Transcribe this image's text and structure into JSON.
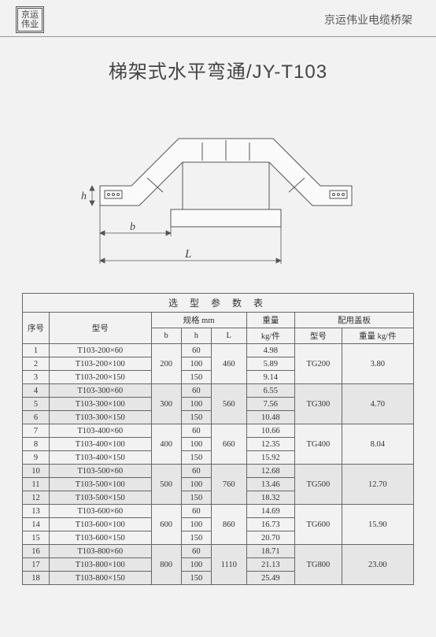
{
  "header": {
    "logo_line1": "京运",
    "logo_line2": "伟业",
    "right_text": "京运伟业电缆桥架"
  },
  "product_title": "梯架式水平弯通/JY-T103",
  "diagram": {
    "label_h": "h",
    "label_b": "b",
    "label_L": "L"
  },
  "table": {
    "title": "选 型 参 数 表",
    "headers": {
      "seq": "序号",
      "model": "型号",
      "spec": "规格 mm",
      "b": "b",
      "h": "h",
      "L": "L",
      "weight": "重量",
      "weight_unit": "kg/件",
      "cover": "配用盖板",
      "cover_model": "型号",
      "cover_weight": "重量 kg/件"
    },
    "groups": [
      {
        "shade": false,
        "b": "200",
        "L": "460",
        "cover_model": "TG200",
        "cover_weight": "3.80",
        "rows": [
          {
            "seq": "1",
            "model": "T103-200×60",
            "h": "60",
            "wt": "4.98"
          },
          {
            "seq": "2",
            "model": "T103-200×100",
            "h": "100",
            "wt": "5.89"
          },
          {
            "seq": "3",
            "model": "T103-200×150",
            "h": "150",
            "wt": "9.14"
          }
        ]
      },
      {
        "shade": true,
        "b": "300",
        "L": "560",
        "cover_model": "TG300",
        "cover_weight": "4.70",
        "rows": [
          {
            "seq": "4",
            "model": "T103-300×60",
            "h": "60",
            "wt": "6.55"
          },
          {
            "seq": "5",
            "model": "T103-300×100",
            "h": "100",
            "wt": "7.56"
          },
          {
            "seq": "6",
            "model": "T103-300×150",
            "h": "150",
            "wt": "10.48"
          }
        ]
      },
      {
        "shade": false,
        "b": "400",
        "L": "660",
        "cover_model": "TG400",
        "cover_weight": "8.04",
        "rows": [
          {
            "seq": "7",
            "model": "T103-400×60",
            "h": "60",
            "wt": "10.66"
          },
          {
            "seq": "8",
            "model": "T103-400×100",
            "h": "100",
            "wt": "12.35"
          },
          {
            "seq": "9",
            "model": "T103-400×150",
            "h": "150",
            "wt": "15.92"
          }
        ]
      },
      {
        "shade": true,
        "b": "500",
        "L": "760",
        "cover_model": "TG500",
        "cover_weight": "12.70",
        "rows": [
          {
            "seq": "10",
            "model": "T103-500×60",
            "h": "60",
            "wt": "12.68"
          },
          {
            "seq": "11",
            "model": "T103-500×100",
            "h": "100",
            "wt": "13.46"
          },
          {
            "seq": "12",
            "model": "T103-500×150",
            "h": "150",
            "wt": "18.32"
          }
        ]
      },
      {
        "shade": false,
        "b": "600",
        "L": "860",
        "cover_model": "TG600",
        "cover_weight": "15.90",
        "rows": [
          {
            "seq": "13",
            "model": "T103-600×60",
            "h": "60",
            "wt": "14.69"
          },
          {
            "seq": "14",
            "model": "T103-600×100",
            "h": "100",
            "wt": "16.73"
          },
          {
            "seq": "15",
            "model": "T103-600×150",
            "h": "150",
            "wt": "20.70"
          }
        ]
      },
      {
        "shade": true,
        "b": "800",
        "L": "1110",
        "cover_model": "TG800",
        "cover_weight": "23.00",
        "rows": [
          {
            "seq": "16",
            "model": "T103-800×60",
            "h": "60",
            "wt": "18.71"
          },
          {
            "seq": "17",
            "model": "T103-800×100",
            "h": "100",
            "wt": "21.13"
          },
          {
            "seq": "18",
            "model": "T103-800×150",
            "h": "150",
            "wt": "25.49"
          }
        ]
      }
    ]
  }
}
